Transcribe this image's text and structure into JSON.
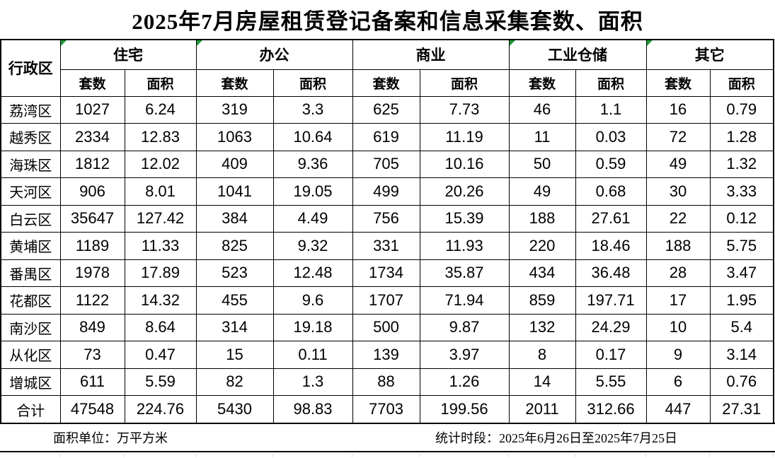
{
  "title": "2025年7月房屋租赁登记备案和信息采集套数、面积",
  "table": {
    "corner_header": "行政区",
    "groups": [
      {
        "label": "住宅",
        "has_marker": true
      },
      {
        "label": "办公",
        "has_marker": true
      },
      {
        "label": "商业",
        "has_marker": false
      },
      {
        "label": "工业仓储",
        "has_marker": true
      },
      {
        "label": "其它",
        "has_marker": true
      }
    ],
    "sub_headers": [
      "套数",
      "面积"
    ],
    "rows": [
      {
        "district": "荔湾区",
        "values": [
          "1027",
          "6.24",
          "319",
          "3.3",
          "625",
          "7.73",
          "46",
          "1.1",
          "16",
          "0.79"
        ]
      },
      {
        "district": "越秀区",
        "values": [
          "2334",
          "12.83",
          "1063",
          "10.64",
          "619",
          "11.19",
          "11",
          "0.03",
          "72",
          "1.28"
        ]
      },
      {
        "district": "海珠区",
        "values": [
          "1812",
          "12.02",
          "409",
          "9.36",
          "705",
          "10.16",
          "50",
          "0.59",
          "49",
          "1.32"
        ]
      },
      {
        "district": "天河区",
        "values": [
          "906",
          "8.01",
          "1041",
          "19.05",
          "499",
          "20.26",
          "49",
          "0.68",
          "30",
          "3.33"
        ]
      },
      {
        "district": "白云区",
        "values": [
          "35647",
          "127.42",
          "384",
          "4.49",
          "756",
          "15.39",
          "188",
          "27.61",
          "22",
          "0.12"
        ]
      },
      {
        "district": "黄埔区",
        "values": [
          "1189",
          "11.33",
          "825",
          "9.32",
          "331",
          "11.93",
          "220",
          "18.46",
          "188",
          "5.75"
        ]
      },
      {
        "district": "番禺区",
        "values": [
          "1978",
          "17.89",
          "523",
          "12.48",
          "1734",
          "35.87",
          "434",
          "36.48",
          "28",
          "3.47"
        ]
      },
      {
        "district": "花都区",
        "values": [
          "1122",
          "14.32",
          "455",
          "9.6",
          "1707",
          "71.94",
          "859",
          "197.71",
          "17",
          "1.95"
        ]
      },
      {
        "district": "南沙区",
        "values": [
          "849",
          "8.64",
          "314",
          "19.18",
          "500",
          "9.87",
          "132",
          "24.29",
          "10",
          "5.4"
        ]
      },
      {
        "district": "从化区",
        "values": [
          "73",
          "0.47",
          "15",
          "0.11",
          "139",
          "3.97",
          "8",
          "0.17",
          "9",
          "3.14"
        ]
      },
      {
        "district": "增城区",
        "values": [
          "611",
          "5.59",
          "82",
          "1.3",
          "88",
          "1.26",
          "14",
          "5.55",
          "6",
          "0.76"
        ]
      },
      {
        "district": "合计",
        "values": [
          "47548",
          "224.76",
          "5430",
          "98.83",
          "7703",
          "199.56",
          "2011",
          "312.66",
          "447",
          "27.31"
        ]
      }
    ],
    "total_label": "合计"
  },
  "footer": {
    "unit_note": "面积单位：万平方米",
    "period_note": "统计时段：2025年6月26日至2025年7月25日"
  },
  "colors": {
    "marker_green": "#1a9c38",
    "border_black": "#000000",
    "gridline_gray": "#d9d9d9"
  }
}
